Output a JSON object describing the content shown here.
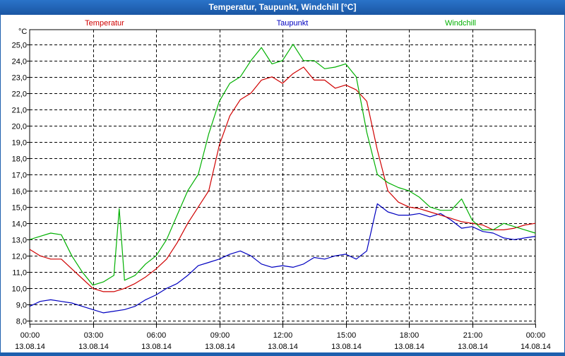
{
  "window": {
    "title": "Temperatur, Taupunkt, Windchill [°C]"
  },
  "chart_data": {
    "type": "line",
    "title": "Temperatur, Taupunkt, Windchill [°C]",
    "ylabel": "°C",
    "xlabel": "",
    "ylim": [
      7.8,
      25.9
    ],
    "xlim": [
      0,
      24
    ],
    "grid": true,
    "legend_position": "top",
    "y_ticks": [
      "8,0",
      "9,0",
      "10,0",
      "11,0",
      "12,0",
      "13,0",
      "14,0",
      "15,0",
      "16,0",
      "17,0",
      "18,0",
      "19,0",
      "20,0",
      "21,0",
      "22,0",
      "23,0",
      "24,0",
      "25,0"
    ],
    "x_ticks": [
      {
        "time": "00:00",
        "date": "13.08.14"
      },
      {
        "time": "03:00",
        "date": "13.08.14"
      },
      {
        "time": "06:00",
        "date": "13.08.14"
      },
      {
        "time": "09:00",
        "date": "13.08.14"
      },
      {
        "time": "12:00",
        "date": "13.08.14"
      },
      {
        "time": "15:00",
        "date": "13.08.14"
      },
      {
        "time": "18:00",
        "date": "13.08.14"
      },
      {
        "time": "21:00",
        "date": "13.08.14"
      },
      {
        "time": "00:00",
        "date": "14.08.14"
      }
    ],
    "series": [
      {
        "name": "Temperatur",
        "color": "#d00000",
        "x": [
          0,
          0.5,
          1,
          1.5,
          2,
          2.5,
          3,
          3.5,
          4,
          4.5,
          5,
          5.5,
          6,
          6.5,
          7,
          7.5,
          8,
          8.5,
          9,
          9.5,
          10,
          10.5,
          11,
          11.5,
          12,
          12.5,
          13,
          13.5,
          14,
          14.5,
          15,
          15.5,
          16,
          16.5,
          17,
          17.5,
          18,
          18.5,
          19,
          19.5,
          20,
          20.5,
          21,
          21.5,
          22,
          22.5,
          23,
          23.5,
          24
        ],
        "values": [
          12.4,
          12.0,
          11.8,
          11.8,
          11.2,
          10.6,
          10.0,
          9.8,
          9.8,
          10.0,
          10.3,
          10.7,
          11.2,
          11.8,
          12.8,
          14.0,
          15.0,
          16.0,
          18.8,
          20.6,
          21.6,
          22.0,
          22.8,
          23.0,
          22.6,
          23.2,
          23.6,
          22.8,
          22.8,
          22.3,
          22.5,
          22.2,
          21.5,
          18.5,
          16.0,
          15.3,
          15.0,
          14.9,
          14.7,
          14.5,
          14.3,
          14.1,
          14.0,
          13.9,
          13.6,
          13.6,
          13.7,
          13.9,
          14.0
        ]
      },
      {
        "name": "Taupunkt",
        "color": "#0000c0",
        "x": [
          0,
          0.5,
          1,
          1.5,
          2,
          2.5,
          3,
          3.5,
          4,
          4.5,
          5,
          5.5,
          6,
          6.5,
          7,
          7.5,
          8,
          8.5,
          9,
          9.5,
          10,
          10.5,
          11,
          11.5,
          12,
          12.5,
          13,
          13.5,
          14,
          14.5,
          15,
          15.5,
          16,
          16.5,
          17,
          17.5,
          18,
          18.5,
          19,
          19.5,
          20,
          20.5,
          21,
          21.5,
          22,
          22.5,
          23,
          23.5,
          24
        ],
        "values": [
          8.9,
          9.2,
          9.3,
          9.2,
          9.1,
          8.9,
          8.7,
          8.5,
          8.6,
          8.7,
          8.9,
          9.3,
          9.6,
          10.0,
          10.3,
          10.8,
          11.4,
          11.6,
          11.8,
          12.1,
          12.3,
          12.0,
          11.5,
          11.3,
          11.4,
          11.3,
          11.5,
          11.9,
          11.8,
          12.0,
          12.1,
          11.8,
          12.3,
          15.2,
          14.7,
          14.5,
          14.5,
          14.6,
          14.4,
          14.6,
          14.2,
          13.7,
          13.8,
          13.5,
          13.4,
          13.1,
          13.0,
          13.1,
          13.2
        ]
      },
      {
        "name": "Windchill",
        "color": "#00b000",
        "x": [
          0,
          0.5,
          1,
          1.5,
          2,
          2.5,
          3,
          3.5,
          4,
          4.25,
          4.5,
          5,
          5.5,
          6,
          6.5,
          7,
          7.5,
          8,
          8.5,
          9,
          9.5,
          10,
          10.5,
          11,
          11.5,
          12,
          12.5,
          13,
          13.5,
          14,
          14.5,
          15,
          15.5,
          16,
          16.5,
          17,
          17.5,
          18,
          18.5,
          19,
          19.5,
          20,
          20.5,
          21,
          21.5,
          22,
          22.5,
          23,
          23.5,
          24
        ],
        "values": [
          13.0,
          13.2,
          13.4,
          13.3,
          12.0,
          11.0,
          10.2,
          10.4,
          10.8,
          14.9,
          10.5,
          10.8,
          11.5,
          12.0,
          13.0,
          14.5,
          16.0,
          17.0,
          19.5,
          21.5,
          22.6,
          23.0,
          24.0,
          24.8,
          23.8,
          24.0,
          25.0,
          24.0,
          24.0,
          23.5,
          23.6,
          23.8,
          23.0,
          19.6,
          17.0,
          16.5,
          16.2,
          16.0,
          15.6,
          15.0,
          14.8,
          14.8,
          15.5,
          14.2,
          13.6,
          13.6,
          14.0,
          13.8,
          13.6,
          13.4
        ]
      }
    ]
  }
}
